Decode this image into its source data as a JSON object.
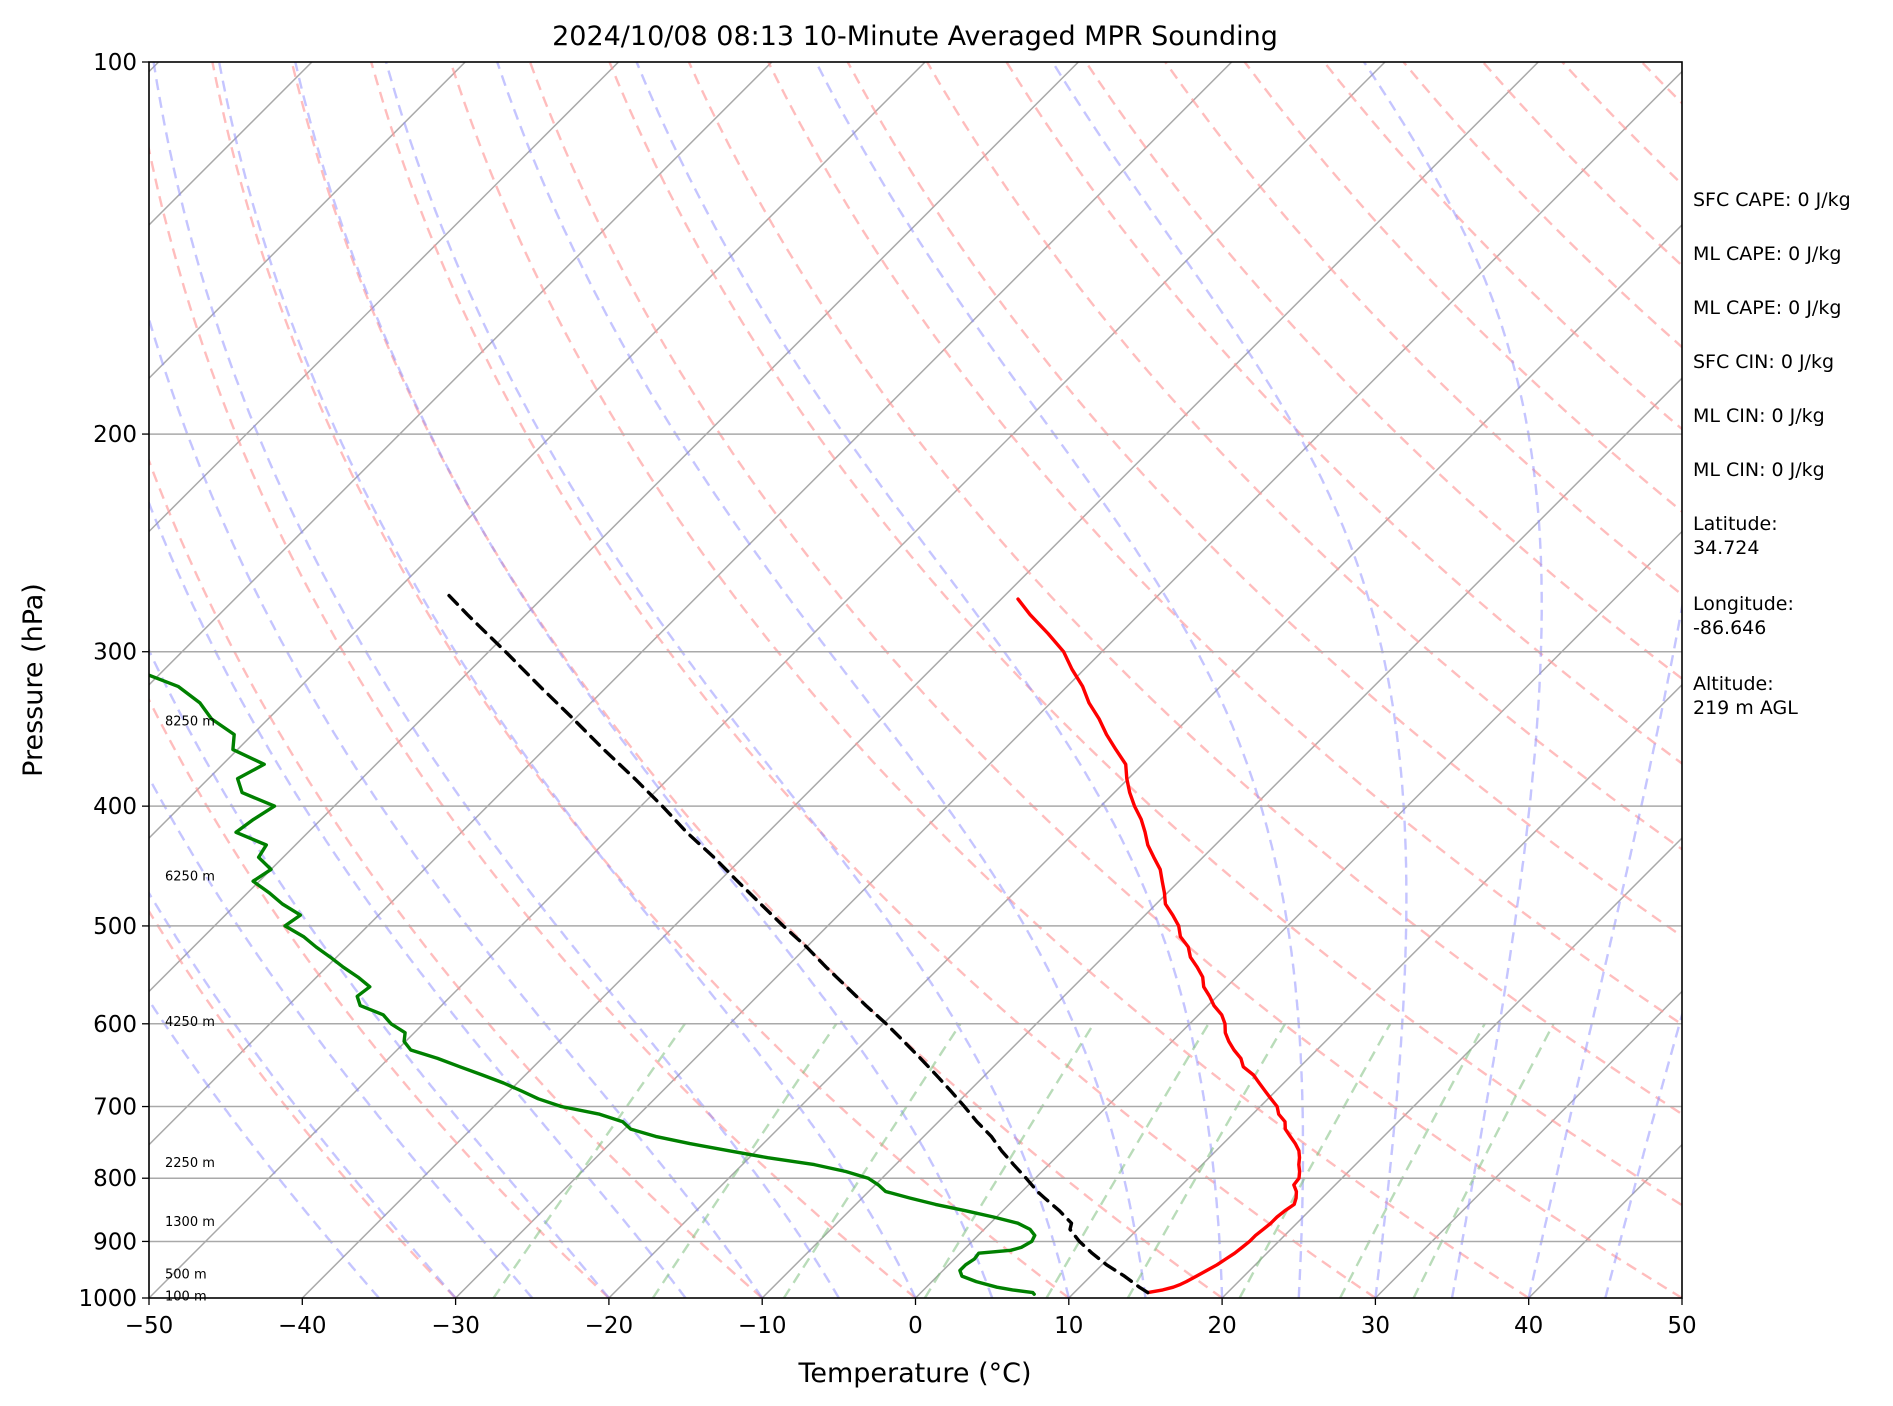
{
  "chart_data": {
    "type": "line",
    "title": "2024/10/08 08:13 10-Minute Averaged MPR Sounding",
    "xlabel": "Temperature (°C)",
    "ylabel": "Pressure (hPa)",
    "xlim": [
      -50,
      50
    ],
    "ylim": [
      1000,
      100
    ],
    "yscale": "log",
    "skew": "skew-T log-P",
    "grid": true,
    "xticks": [
      -50,
      -40,
      -30,
      -20,
      -10,
      0,
      10,
      20,
      30,
      40,
      50
    ],
    "xtick_labels": [
      "−50",
      "−40",
      "−30",
      "−20",
      "−10",
      "0",
      "10",
      "20",
      "30",
      "40",
      "50"
    ],
    "yticks": [
      1000,
      900,
      800,
      700,
      600,
      500,
      400,
      300,
      200,
      100
    ],
    "ytick_labels": [
      "1000",
      "900",
      "800",
      "700",
      "600",
      "500",
      "400",
      "300",
      "200",
      "100"
    ],
    "height_labels": [
      {
        "p": 995,
        "label": "100 m"
      },
      {
        "p": 955,
        "label": "500 m"
      },
      {
        "p": 866,
        "label": "1300 m"
      },
      {
        "p": 776,
        "label": "2250 m"
      },
      {
        "p": 597,
        "label": "4250 m"
      },
      {
        "p": 455,
        "label": "6250 m"
      },
      {
        "p": 341,
        "label": "8250 m"
      }
    ],
    "series": [
      {
        "color": "#ff0000",
        "p": [
          990,
          985,
          980,
          975,
          970,
          960,
          950,
          940,
          930,
          920,
          910,
          900,
          890,
          880,
          870,
          860,
          850,
          840,
          830,
          820,
          810,
          800,
          790,
          780,
          770,
          760,
          750,
          740,
          730,
          720,
          710,
          700,
          690,
          680,
          670,
          660,
          650,
          640,
          630,
          620,
          610,
          600,
          590,
          580,
          570,
          560,
          550,
          540,
          530,
          520,
          510,
          500,
          490,
          480,
          470,
          460,
          450,
          440,
          430,
          420,
          410,
          400,
          390,
          380,
          370,
          360,
          350,
          340,
          330,
          320,
          310,
          300,
          290,
          280,
          272
        ],
        "t": [
          14.8,
          15.6,
          16.1,
          16.4,
          16.6,
          16.9,
          17.2,
          17.5,
          17.7,
          17.9,
          18.0,
          18.1,
          18.1,
          18.2,
          18.3,
          18.3,
          18.4,
          18.6,
          18.3,
          17.9,
          17.3,
          17.2,
          16.8,
          16.3,
          15.9,
          15.4,
          14.7,
          13.9,
          13.1,
          12.6,
          11.7,
          11.1,
          10.2,
          9.3,
          8.4,
          7.5,
          6.3,
          5.6,
          4.6,
          3.7,
          2.9,
          2.3,
          1.5,
          0.4,
          -0.5,
          -1.5,
          -2.2,
          -3.2,
          -4.3,
          -5.1,
          -6.3,
          -7.1,
          -8.2,
          -9.4,
          -10.2,
          -11.1,
          -12.0,
          -13.2,
          -14.4,
          -15.4,
          -16.5,
          -17.8,
          -19.0,
          -20.1,
          -21.1,
          -22.7,
          -24.3,
          -25.8,
          -27.5,
          -29.0,
          -30.8,
          -32.5,
          -34.7,
          -37.1,
          -38.9
        ]
      },
      {
        "color": "#000000",
        "style": "dashed",
        "p": [
          990,
          980,
          960,
          940,
          920,
          900,
          880,
          870,
          860,
          850,
          840,
          830,
          820,
          800,
          780,
          760,
          740,
          720,
          700,
          680,
          660,
          640,
          620,
          600,
          580,
          560,
          540,
          520,
          500,
          480,
          460,
          440,
          420,
          400,
          380,
          360,
          340,
          320,
          300,
          280,
          270
        ],
        "t": [
          14.8,
          13.9,
          12.2,
          10.3,
          8.6,
          7.0,
          5.6,
          5.3,
          4.5,
          3.7,
          2.8,
          1.9,
          1.0,
          -0.6,
          -2.3,
          -4.0,
          -5.6,
          -7.5,
          -9.3,
          -11.2,
          -13.2,
          -15.3,
          -17.5,
          -19.8,
          -22.3,
          -24.8,
          -27.4,
          -30.0,
          -32.9,
          -35.8,
          -38.8,
          -41.9,
          -45.3,
          -48.6,
          -52.2,
          -56.1,
          -60.1,
          -64.4,
          -68.9,
          -73.8,
          -76.3
        ]
      },
      {
        "color": "#008000",
        "p": [
          993,
          990,
          985,
          980,
          970,
          960,
          950,
          940,
          930,
          920,
          915,
          910,
          900,
          890,
          880,
          870,
          860,
          850,
          840,
          830,
          820,
          810,
          800,
          790,
          780,
          770,
          760,
          750,
          740,
          730,
          720,
          710,
          700,
          690,
          680,
          670,
          660,
          650,
          640,
          630,
          620,
          610,
          600,
          590,
          580,
          570,
          560,
          550,
          540,
          530,
          520,
          510,
          500,
          490,
          480,
          470,
          460,
          450,
          440,
          430,
          420,
          410,
          400,
          390,
          380,
          370,
          360,
          350,
          340,
          330,
          320,
          310,
          305,
          300,
          299
        ],
        "t": [
          7.5,
          7.3,
          5.8,
          4.6,
          2.9,
          1.6,
          1.1,
          1.1,
          1.3,
          1.2,
          3.1,
          3.6,
          3.9,
          3.7,
          3.0,
          1.8,
          -0.2,
          -2.4,
          -4.8,
          -6.9,
          -8.9,
          -9.8,
          -10.9,
          -12.8,
          -15.3,
          -18.8,
          -21.8,
          -24.8,
          -27.5,
          -29.6,
          -30.6,
          -32.6,
          -35.6,
          -37.6,
          -39.2,
          -40.9,
          -42.8,
          -44.8,
          -46.8,
          -49.1,
          -50.1,
          -50.6,
          -52.1,
          -53.2,
          -55.3,
          -56.1,
          -55.9,
          -57.3,
          -58.9,
          -60.4,
          -62.0,
          -63.5,
          -65.4,
          -65.1,
          -67.0,
          -68.6,
          -70.4,
          -70.0,
          -71.6,
          -71.9,
          -74.7,
          -74.4,
          -73.9,
          -76.9,
          -78.1,
          -77.3,
          -80.3,
          -81.2,
          -83.7,
          -85.5,
          -88.0,
          -92.0,
          -97.0,
          -105.0,
          -115.0
        ]
      }
    ]
  },
  "side_panel": {
    "stats": [
      "SFC CAPE: 0 J/kg",
      "ML CAPE: 0 J/kg",
      "ML CAPE: 0 J/kg",
      "SFC CIN: 0 J/kg",
      "ML CIN: 0 J/kg",
      "ML CIN: 0 J/kg"
    ],
    "latitude_label": "Latitude:",
    "latitude_value": "34.724",
    "longitude_label": "Longitude:",
    "longitude_value": "-86.646",
    "altitude_label": "Altitude:",
    "altitude_value": "219 m AGL"
  }
}
